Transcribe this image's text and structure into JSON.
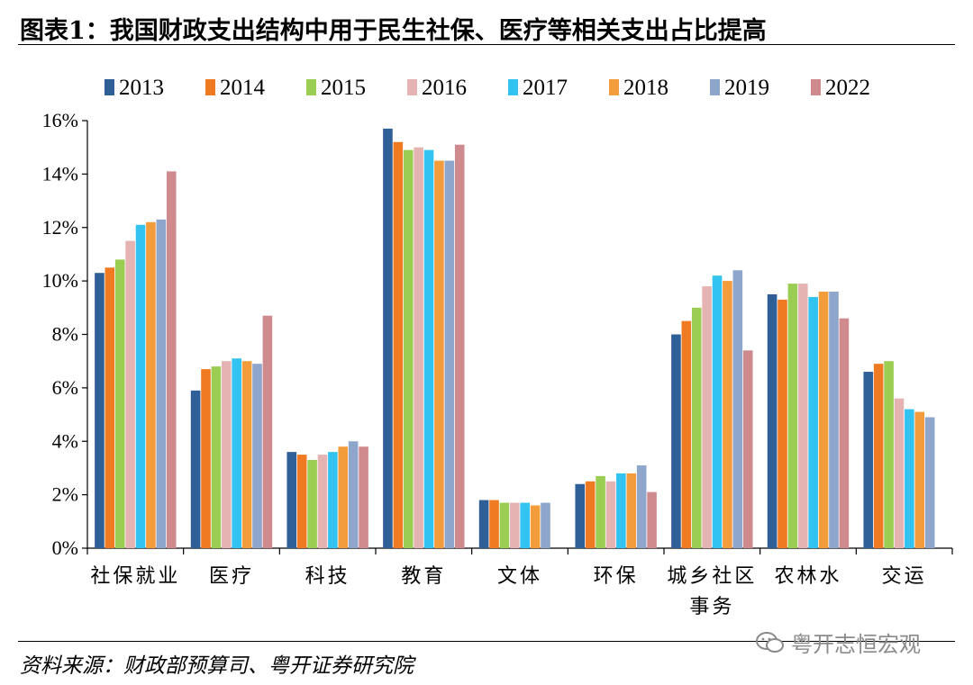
{
  "title": "图表1：我国财政支出结构中用于民生社保、医疗等相关支出占比提高",
  "source": "资料来源：财政部预算司、粤开证券研究院",
  "watermark": "粤开志恒宏观",
  "chart_data": {
    "type": "bar",
    "categories": [
      [
        "社保就业"
      ],
      [
        "医疗"
      ],
      [
        "科技"
      ],
      [
        "教育"
      ],
      [
        "文体"
      ],
      [
        "环保"
      ],
      [
        "城乡社区",
        "事务"
      ],
      [
        "农林水"
      ],
      [
        "交运"
      ]
    ],
    "ylim": [
      0,
      16
    ],
    "yticks": [
      "0%",
      "2%",
      "4%",
      "6%",
      "8%",
      "10%",
      "12%",
      "14%",
      "16%"
    ],
    "legend_position": "top",
    "grid": false,
    "series": [
      {
        "name": "2013",
        "color": "#2e5f96",
        "values": [
          10.3,
          5.9,
          3.6,
          15.7,
          1.8,
          2.4,
          8.0,
          9.5,
          6.6
        ]
      },
      {
        "name": "2014",
        "color": "#f07a22",
        "values": [
          10.5,
          6.7,
          3.5,
          15.2,
          1.8,
          2.5,
          8.5,
          9.3,
          6.9
        ]
      },
      {
        "name": "2015",
        "color": "#9acd52",
        "values": [
          10.8,
          6.8,
          3.3,
          14.9,
          1.7,
          2.7,
          9.0,
          9.9,
          7.0
        ]
      },
      {
        "name": "2016",
        "color": "#e6b3b3",
        "values": [
          11.5,
          7.0,
          3.5,
          15.0,
          1.7,
          2.5,
          9.8,
          9.9,
          5.6
        ]
      },
      {
        "name": "2017",
        "color": "#33c3f0",
        "values": [
          12.1,
          7.1,
          3.6,
          14.9,
          1.7,
          2.8,
          10.2,
          9.4,
          5.2
        ]
      },
      {
        "name": "2018",
        "color": "#f39c3c",
        "values": [
          12.2,
          7.0,
          3.8,
          14.5,
          1.6,
          2.8,
          10.0,
          9.6,
          5.1
        ]
      },
      {
        "name": "2019",
        "color": "#8fa6cc",
        "values": [
          12.3,
          6.9,
          4.0,
          14.5,
          1.7,
          3.1,
          10.4,
          9.6,
          4.9
        ]
      },
      {
        "name": "2022",
        "color": "#cf8a8d",
        "values": [
          14.1,
          8.7,
          3.8,
          15.1,
          null,
          2.1,
          7.4,
          8.6,
          null
        ]
      }
    ]
  }
}
